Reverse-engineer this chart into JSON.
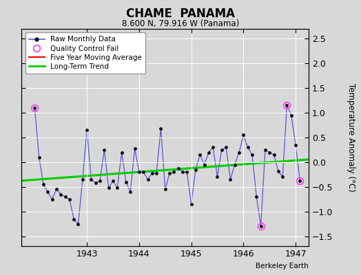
{
  "title": "CHAME  PANAMA",
  "subtitle": "8.600 N, 79.916 W (Panama)",
  "ylabel": "Temperature Anomaly (°C)",
  "credit": "Berkeley Earth",
  "ylim": [
    -1.7,
    2.7
  ],
  "xlim": [
    1941.75,
    1947.25
  ],
  "yticks": [
    -1.5,
    -1.0,
    -0.5,
    0.0,
    0.5,
    1.0,
    1.5,
    2.0,
    2.5
  ],
  "xticks": [
    1943,
    1944,
    1945,
    1946,
    1947
  ],
  "bg_color": "#d8d8d8",
  "plot_bg_color": "#d8d8d8",
  "raw_line_color": "#5555dd",
  "raw_dot_color": "#111111",
  "qc_color": "#ff44ff",
  "ma_color": "#ee0000",
  "trend_color": "#00cc00",
  "raw_data": [
    [
      1942.0,
      1.1
    ],
    [
      1942.083,
      0.1
    ],
    [
      1942.167,
      -0.45
    ],
    [
      1942.25,
      -0.6
    ],
    [
      1942.333,
      -0.75
    ],
    [
      1942.417,
      -0.55
    ],
    [
      1942.5,
      -0.65
    ],
    [
      1942.583,
      -0.7
    ],
    [
      1942.667,
      -0.75
    ],
    [
      1942.75,
      -1.15
    ],
    [
      1942.833,
      -1.25
    ],
    [
      1942.917,
      -0.35
    ],
    [
      1943.0,
      0.65
    ],
    [
      1943.083,
      -0.35
    ],
    [
      1943.167,
      -0.42
    ],
    [
      1943.25,
      -0.38
    ],
    [
      1943.333,
      0.25
    ],
    [
      1943.417,
      -0.52
    ],
    [
      1943.5,
      -0.38
    ],
    [
      1943.583,
      -0.52
    ],
    [
      1943.667,
      0.2
    ],
    [
      1943.75,
      -0.4
    ],
    [
      1943.833,
      -0.6
    ],
    [
      1943.917,
      0.28
    ],
    [
      1944.0,
      -0.2
    ],
    [
      1944.083,
      -0.2
    ],
    [
      1944.167,
      -0.35
    ],
    [
      1944.25,
      -0.22
    ],
    [
      1944.333,
      -0.22
    ],
    [
      1944.417,
      0.68
    ],
    [
      1944.5,
      -0.55
    ],
    [
      1944.583,
      -0.23
    ],
    [
      1944.667,
      -0.2
    ],
    [
      1944.75,
      -0.12
    ],
    [
      1944.833,
      -0.2
    ],
    [
      1944.917,
      -0.2
    ],
    [
      1945.0,
      -0.85
    ],
    [
      1945.083,
      -0.15
    ],
    [
      1945.167,
      0.15
    ],
    [
      1945.25,
      -0.05
    ],
    [
      1945.333,
      0.2
    ],
    [
      1945.417,
      0.3
    ],
    [
      1945.5,
      -0.3
    ],
    [
      1945.583,
      0.25
    ],
    [
      1945.667,
      0.3
    ],
    [
      1945.75,
      -0.35
    ],
    [
      1945.833,
      -0.05
    ],
    [
      1945.917,
      0.2
    ],
    [
      1946.0,
      0.55
    ],
    [
      1946.083,
      0.3
    ],
    [
      1946.167,
      0.15
    ],
    [
      1946.25,
      -0.7
    ],
    [
      1946.333,
      -1.3
    ],
    [
      1946.417,
      0.25
    ],
    [
      1946.5,
      0.2
    ],
    [
      1946.583,
      0.15
    ],
    [
      1946.667,
      -0.18
    ],
    [
      1946.75,
      -0.3
    ],
    [
      1946.833,
      1.15
    ],
    [
      1946.917,
      0.95
    ],
    [
      1947.0,
      0.35
    ],
    [
      1947.083,
      -0.38
    ]
  ],
  "qc_fail_points": [
    [
      1942.0,
      1.1
    ],
    [
      1946.333,
      -1.3
    ],
    [
      1946.833,
      1.15
    ],
    [
      1947.083,
      -0.38
    ]
  ],
  "trend_line": [
    [
      1941.75,
      -0.375
    ],
    [
      1947.25,
      0.055
    ]
  ]
}
